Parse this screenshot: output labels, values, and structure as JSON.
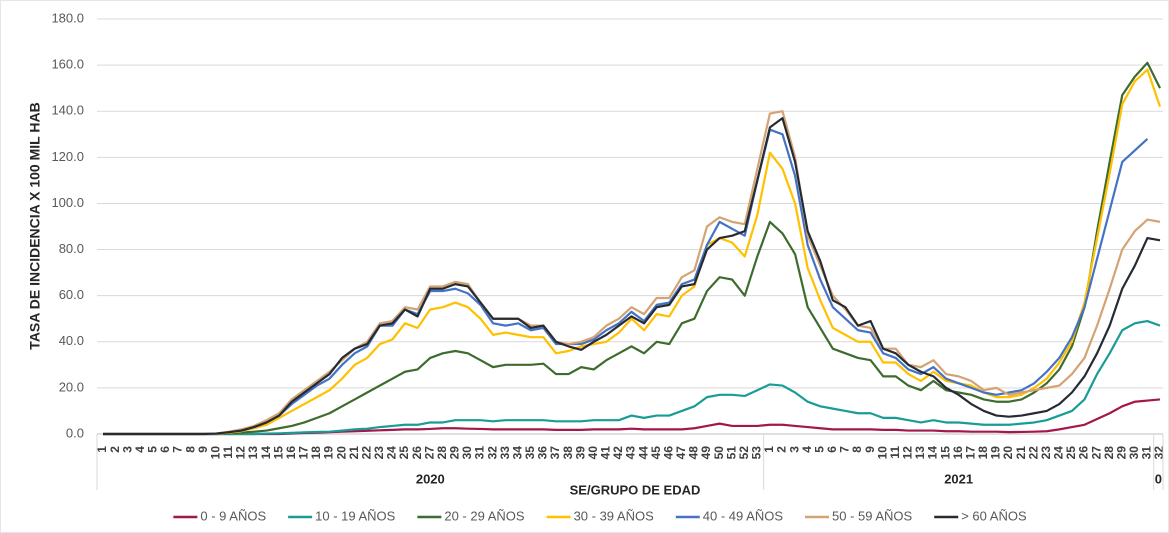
{
  "chart_data": {
    "type": "line",
    "y_axis_title": "TASA DE INCIDENCIA X 100 MIL HAB",
    "x_axis_title": "SE/GRUPO DE EDAD",
    "categories": [
      "1",
      "2",
      "3",
      "4",
      "5",
      "6",
      "7",
      "8",
      "9",
      "10",
      "11",
      "12",
      "13",
      "14",
      "15",
      "16",
      "17",
      "18",
      "19",
      "20",
      "21",
      "22",
      "23",
      "24",
      "25",
      "26",
      "27",
      "28",
      "29",
      "30",
      "31",
      "32",
      "33",
      "34",
      "35",
      "36",
      "37",
      "38",
      "39",
      "40",
      "41",
      "42",
      "43",
      "44",
      "45",
      "46",
      "47",
      "48",
      "49",
      "50",
      "51",
      "52",
      "53",
      "1",
      "2",
      "3",
      "4",
      "5",
      "6",
      "7",
      "8",
      "9",
      "10",
      "11",
      "12",
      "13",
      "14",
      "15",
      "16",
      "17",
      "18",
      "19",
      "20",
      "21",
      "22",
      "23",
      "24",
      "25",
      "26",
      "27",
      "28",
      "29",
      "30",
      "31",
      "32"
    ],
    "category_groups": [
      {
        "label": "2020",
        "count": 53
      },
      {
        "label": "2021",
        "count": 31
      },
      {
        "label": "0",
        "count": 1
      }
    ],
    "ylim": [
      0,
      180
    ],
    "yticks": [
      {
        "value": 0,
        "label": "0.0"
      },
      {
        "value": 20,
        "label": "20.0"
      },
      {
        "value": 40,
        "label": "40.0"
      },
      {
        "value": 60,
        "label": "60.0"
      },
      {
        "value": 80,
        "label": "80.0"
      },
      {
        "value": 100,
        "label": "100.0"
      },
      {
        "value": 120,
        "label": "120.0"
      },
      {
        "value": 140,
        "label": "140.0"
      },
      {
        "value": 160,
        "label": "160.0"
      },
      {
        "value": 180,
        "label": "180.0"
      }
    ],
    "grid": true,
    "legend": "bottom",
    "series": [
      {
        "name": "0 - 9 AÑOS",
        "color": "#a3174b",
        "values": [
          0,
          0,
          0,
          0,
          0,
          0,
          0,
          0,
          0,
          0,
          0,
          0,
          0,
          0,
          0,
          0.2,
          0.4,
          0.6,
          0.8,
          1,
          1.2,
          1.4,
          1.6,
          1.8,
          2,
          2,
          2.2,
          2.5,
          2.5,
          2.3,
          2.2,
          2,
          2,
          2,
          2,
          2,
          1.8,
          1.8,
          1.8,
          2,
          2,
          2,
          2.3,
          2,
          2,
          2,
          2,
          2.5,
          3.5,
          4.5,
          3.5,
          3.5,
          3.5,
          4,
          4,
          3.5,
          3,
          2.5,
          2,
          2,
          2,
          2,
          1.8,
          1.8,
          1.5,
          1.5,
          1.5,
          1.2,
          1.2,
          1,
          1,
          1,
          0.8,
          0.9,
          1,
          1.2,
          2,
          3,
          4,
          6.5,
          9,
          12,
          14,
          14.5,
          15
        ]
      },
      {
        "name": "10 - 19 AÑOS",
        "color": "#1a9c96",
        "values": [
          0,
          0,
          0,
          0,
          0,
          0,
          0,
          0,
          0,
          0,
          0,
          0,
          0,
          0.2,
          0.3,
          0.5,
          0.7,
          0.9,
          1,
          1.5,
          2,
          2.3,
          3,
          3.5,
          4,
          4,
          5,
          5,
          6,
          6,
          6,
          5.5,
          6,
          6,
          6,
          6,
          5.5,
          5.5,
          5.5,
          6,
          6,
          6,
          8,
          7,
          8,
          8,
          10,
          12,
          16,
          17,
          17,
          16.5,
          19,
          21.5,
          21,
          18,
          14,
          12,
          11,
          10,
          9,
          9,
          7,
          7,
          6,
          5,
          6,
          5,
          5,
          4.5,
          4,
          4,
          4,
          4.5,
          5,
          6,
          8,
          10,
          15,
          26,
          35,
          45,
          48,
          49,
          47
        ]
      },
      {
        "name": "20 - 29 AÑOS",
        "color": "#3e6b2e",
        "values": [
          0,
          0,
          0,
          0,
          0,
          0,
          0,
          0,
          0,
          0,
          0.3,
          0.6,
          1,
          1.5,
          2.5,
          3.5,
          5,
          7,
          9,
          12,
          15,
          18,
          21,
          24,
          27,
          28,
          33,
          35,
          36,
          35,
          32,
          29,
          30,
          30,
          30,
          30.5,
          26,
          26,
          29,
          28,
          32,
          35,
          38,
          35,
          40,
          39,
          48,
          50,
          62,
          68,
          67,
          60,
          77,
          92,
          87,
          78,
          55,
          46,
          37,
          35,
          33,
          32,
          25,
          25,
          21,
          19,
          23,
          19,
          18,
          17,
          15,
          14,
          14,
          15,
          18,
          22,
          28,
          38,
          55,
          88,
          118,
          147,
          155,
          161,
          150
        ]
      },
      {
        "name": "30 - 39 AÑOS",
        "color": "#ffc000",
        "values": [
          0,
          0,
          0,
          0,
          0,
          0,
          0,
          0,
          0,
          0.1,
          0.6,
          1.2,
          2.5,
          4,
          7,
          10,
          13,
          16,
          19,
          24,
          30,
          33,
          39,
          41,
          48,
          46,
          54,
          55,
          57,
          55,
          50,
          43,
          44,
          43,
          42,
          42,
          35,
          36,
          38,
          39,
          40,
          44,
          50,
          45,
          52,
          51,
          60,
          64,
          82,
          85,
          83,
          77,
          95,
          122,
          115,
          100,
          72,
          58,
          46,
          43,
          40,
          40,
          31,
          31,
          26,
          23,
          27,
          23,
          22,
          21,
          18,
          16,
          16,
          17,
          20,
          24,
          31,
          40,
          57,
          85,
          113,
          143,
          153,
          158,
          142
        ]
      },
      {
        "name": "40 - 49 AÑOS",
        "color": "#4472c4",
        "values": [
          0,
          0,
          0,
          0,
          0,
          0,
          0,
          0,
          0,
          0.2,
          0.8,
          1.5,
          3,
          5,
          8,
          13,
          17,
          21,
          24,
          30,
          35,
          38,
          47,
          47,
          54,
          52,
          62,
          62,
          63,
          61,
          56,
          48,
          47,
          48,
          45,
          46,
          39,
          39,
          39,
          41,
          45,
          48,
          53,
          49,
          56,
          57,
          65,
          67,
          82,
          92,
          89,
          86,
          110,
          132,
          130,
          112,
          82,
          67,
          55,
          50,
          45,
          44,
          35,
          33,
          28,
          26,
          29,
          24,
          22,
          20,
          18,
          17,
          18,
          19,
          22,
          27,
          33,
          42,
          55,
          76,
          97,
          118,
          123,
          128,
          null
        ]
      },
      {
        "name": "50 - 59 AÑOS",
        "color": "#d4a373",
        "values": [
          0,
          0,
          0,
          0,
          0,
          0,
          0,
          0,
          0,
          0.2,
          1,
          2,
          3.5,
          6,
          9,
          15,
          19,
          23,
          27,
          32,
          37,
          40,
          48,
          49,
          55,
          54,
          64,
          64,
          66,
          65,
          57,
          50,
          50,
          50,
          47,
          47,
          40,
          39,
          40,
          42,
          47,
          50,
          55,
          52,
          59,
          59,
          68,
          71,
          90,
          94,
          92,
          91,
          115,
          139,
          140,
          120,
          86,
          73,
          60,
          54,
          47,
          46,
          37,
          37,
          30,
          29,
          32,
          26,
          25,
          23,
          19,
          20,
          17,
          18,
          19,
          20,
          21,
          26,
          33,
          47,
          63,
          80,
          88,
          93,
          92
        ]
      },
      {
        "name": "> 60 AÑOS",
        "color": "#262b33",
        "values": [
          0,
          0,
          0,
          0,
          0,
          0,
          0,
          0,
          0,
          0.2,
          0.8,
          1.5,
          3,
          5,
          8,
          14,
          18,
          22,
          26,
          33,
          37,
          39,
          47,
          48,
          54,
          51,
          63,
          63,
          65,
          64,
          57,
          50,
          50,
          50,
          46,
          47,
          40,
          38,
          36.5,
          40,
          43,
          47,
          51,
          48,
          55,
          56,
          64,
          65,
          80,
          85,
          86,
          88,
          110,
          133,
          137,
          118,
          88,
          75,
          58,
          55,
          47,
          49,
          37,
          35,
          30,
          27,
          25,
          20,
          17,
          13,
          10,
          8,
          7.5,
          8,
          9,
          10,
          13,
          18,
          25,
          35,
          47,
          63,
          73,
          85,
          84
        ]
      }
    ]
  }
}
